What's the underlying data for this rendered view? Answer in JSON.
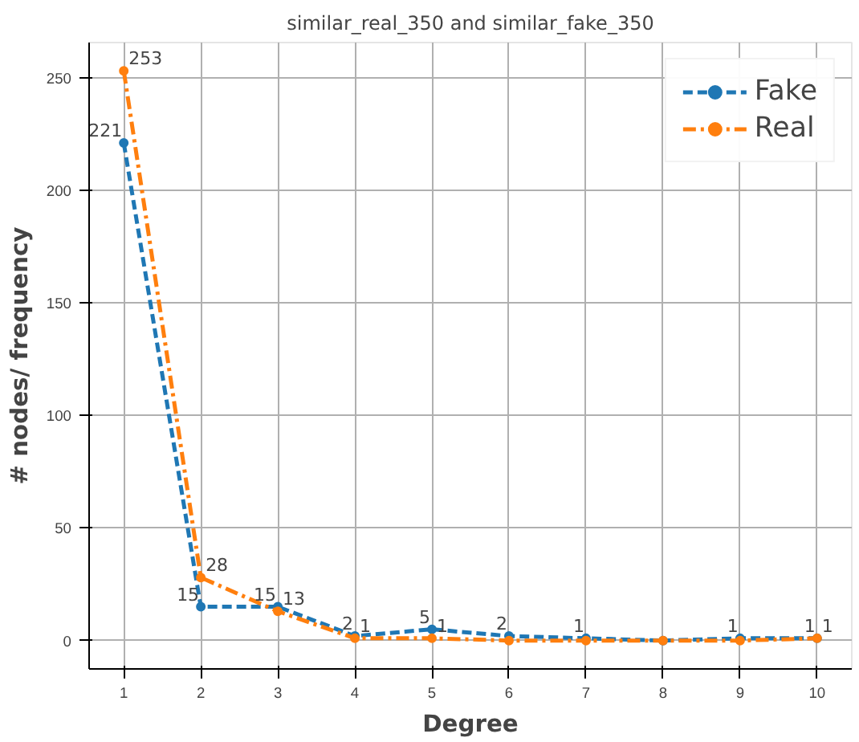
{
  "chart_data": {
    "type": "line",
    "title": "similar_real_350 and similar_fake_350",
    "xlabel": "Degree",
    "ylabel": "# nodes/ frequency",
    "x": [
      1,
      2,
      3,
      4,
      5,
      6,
      7,
      8,
      9,
      10
    ],
    "series": [
      {
        "name": "Fake",
        "color": "#1f77b4",
        "line_style": "dashed",
        "values": [
          221,
          15,
          15,
          2,
          5,
          2,
          1,
          0,
          1,
          1
        ],
        "value_labels": [
          "221",
          "15",
          "15",
          "2",
          "5",
          "2",
          "1",
          null,
          "1",
          "1"
        ]
      },
      {
        "name": "Real",
        "color": "#ff7f0e",
        "line_style": "dashdot",
        "values": [
          253,
          28,
          13,
          1,
          1,
          0,
          0,
          0,
          0,
          1
        ],
        "value_labels": [
          "253",
          "28",
          "13",
          "1",
          "1",
          null,
          null,
          null,
          null,
          "1"
        ]
      }
    ],
    "xlim": [
      0.55,
      10.45
    ],
    "ylim": [
      -12.6,
      265.6
    ],
    "xticks": [
      1,
      2,
      3,
      4,
      5,
      6,
      7,
      8,
      9,
      10
    ],
    "yticks": [
      0,
      50,
      100,
      150,
      200,
      250
    ],
    "grid": true,
    "legend": "top right",
    "marker": "circle"
  }
}
